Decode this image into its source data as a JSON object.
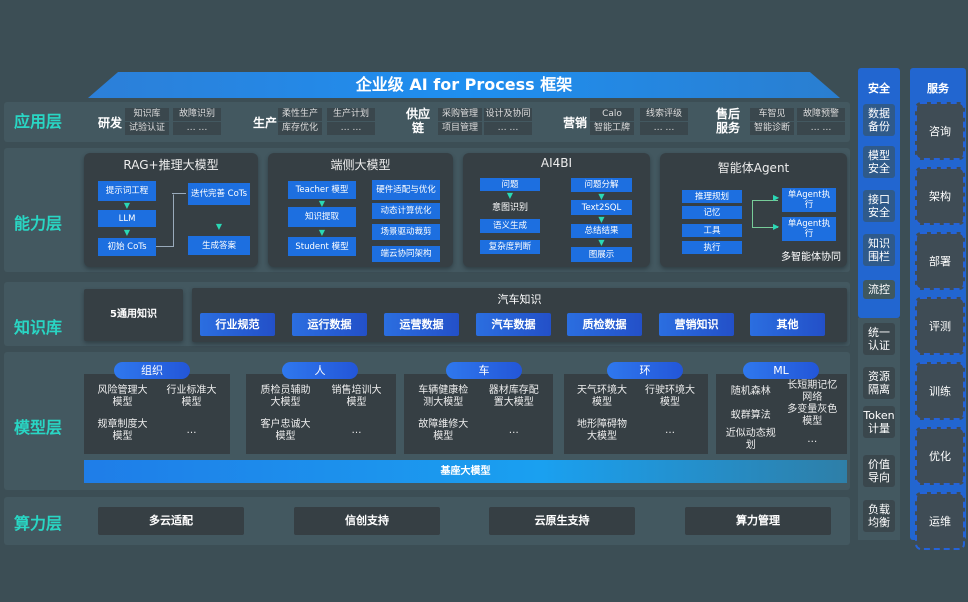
{
  "title": "企业级 AI for Process 框架",
  "layers": {
    "app": "应用层",
    "capability": "能力层",
    "knowledge": "知识库",
    "model": "模型层",
    "compute": "算力层"
  },
  "app_groups": [
    {
      "name": "研发",
      "items": [
        [
          "知识库",
          "试验认证"
        ],
        [
          "故障识别",
          "… …"
        ]
      ]
    },
    {
      "name": "生产",
      "items": [
        [
          "柔性生产",
          "库存优化"
        ],
        [
          "生产计划",
          "… …"
        ]
      ]
    },
    {
      "name": "供应链",
      "items": [
        [
          "采购管理",
          "项目管理"
        ],
        [
          "设计及协同",
          "… …"
        ]
      ]
    },
    {
      "name": "营销",
      "items": [
        [
          "Calo",
          "智能工牌"
        ],
        [
          "线索评级",
          "… …"
        ]
      ]
    },
    {
      "name": "售后服务",
      "items": [
        [
          "车智见",
          "智能诊断"
        ],
        [
          "故障预警",
          "… …"
        ]
      ]
    }
  ],
  "capabilities": {
    "rag": {
      "title": "RAG+推理大模型",
      "steps": [
        "提示词工程",
        "LLM",
        "初始 CoTs",
        "迭代完善 CoTs",
        "生成答案"
      ]
    },
    "edge": {
      "title": "端侧大模型",
      "flow": [
        "Teacher 模型",
        "知识提取",
        "Student 模型"
      ],
      "features": [
        "硬件适配与优化",
        "动态计算优化",
        "场景驱动裁剪",
        "端云协同架构"
      ]
    },
    "ai4bi": {
      "title": "AI4BI",
      "left": [
        "问题",
        "意图识别",
        "语义生成",
        "复杂度判断"
      ],
      "right": [
        "问题分解",
        "Text2SQL",
        "总结结果",
        "图展示"
      ]
    },
    "agent": {
      "title": "智能体Agent",
      "modules": [
        "推理规划",
        "记忆",
        "工具",
        "执行"
      ],
      "executors": [
        "单Agent执行",
        "单Agent执行"
      ],
      "caption": "多智能体协同"
    }
  },
  "knowledge": {
    "general": "5通用知识",
    "auto_title": "汽车知识",
    "chips": [
      "行业规范",
      "运行数据",
      "运营数据",
      "汽车数据",
      "质检数据",
      "营销知识",
      "其他"
    ]
  },
  "models": [
    {
      "tag": "组织",
      "items": [
        "风险管理大模型",
        "行业标准大模型",
        "规章制度大模型",
        "…"
      ]
    },
    {
      "tag": "人",
      "items": [
        "质检员辅助大模型",
        "销售培训大模型",
        "客户忠诚大模型",
        "…"
      ]
    },
    {
      "tag": "车",
      "items": [
        "车辆健康检测大模型",
        "器材库存配置大模型",
        "故障维修大模型",
        "…"
      ]
    },
    {
      "tag": "环",
      "items": [
        "天气环境大模型",
        "行驶环境大模型",
        "地形障碍物大模型",
        "…"
      ]
    },
    {
      "tag": "ML",
      "items": [
        "随机森林",
        "长短期记忆网络",
        "蚁群算法",
        "多变量灰色模型",
        "近似动态规划",
        "…"
      ]
    }
  ],
  "base_model": "基座大模型",
  "compute": [
    "多云适配",
    "信创支持",
    "云原生支持",
    "算力管理"
  ],
  "security": {
    "title": "安全",
    "items": [
      "数据备份",
      "模型安全",
      "接口安全",
      "知识围栏",
      "流控",
      "统一认证",
      "资源隔离",
      "Token计量",
      "价值导向",
      "负载均衡"
    ]
  },
  "service": {
    "title": "服务",
    "items": [
      "咨询",
      "架构",
      "部署",
      "评测",
      "训练",
      "优化",
      "运维"
    ]
  },
  "colors": {
    "background": "#3c4e55",
    "layer_label": "#29d6c4",
    "accent_blue": "#1d6fe0"
  }
}
